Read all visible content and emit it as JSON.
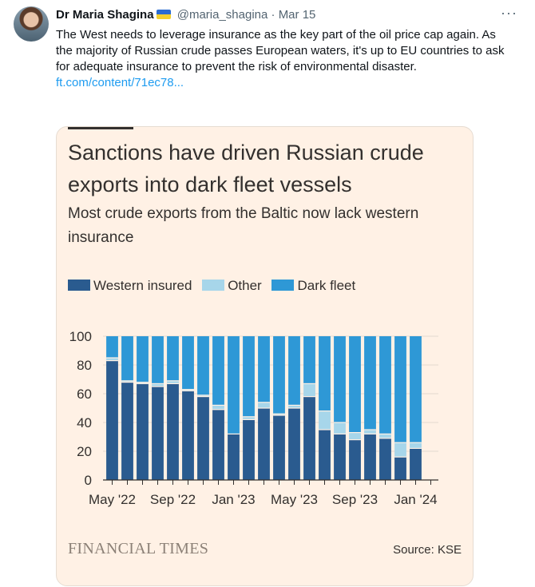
{
  "tweet": {
    "author_name": "Dr Maria Shagina",
    "handle": "@maria_shagina",
    "separator": "·",
    "date": "Mar 15",
    "more_icon": "more-horizontal-icon",
    "text": "The West needs to leverage insurance as the key part of the oil price cap again. As the majority of Russian crude passes European waters, it's up to EU countries to ask for adequate insurance to prevent the risk of environmental disaster.",
    "link_text": "ft.com/content/71ec78..."
  },
  "card": {
    "title": "Sanctions have driven Russian crude exports into dark fleet vessels",
    "subtitle": "Most crude exports from the Baltic now lack western insurance",
    "logo_text": "FINANCIAL TIMES",
    "source": "Source: KSE"
  },
  "chart_data": {
    "type": "bar",
    "stacked": true,
    "categories": [
      "May '22",
      "Jun '22",
      "Jul '22",
      "Aug '22",
      "Sep '22",
      "Oct '22",
      "Nov '22",
      "Dec '22",
      "Jan '23",
      "Feb '23",
      "Mar '23",
      "Apr '23",
      "May '23",
      "Jun '23",
      "Jul '23",
      "Aug '23",
      "Sep '23",
      "Oct '23",
      "Nov '23",
      "Dec '23",
      "Jan '24",
      "Feb '24"
    ],
    "tick_labels": [
      "May '22",
      "Sep '22",
      "Jan '23",
      "May '23",
      "Sep '23",
      "Jan '24"
    ],
    "tick_label_indices": [
      0,
      4,
      8,
      12,
      16,
      20
    ],
    "series": [
      {
        "name": "Western insured",
        "color": "#2a5b8f",
        "values": [
          83,
          68,
          67,
          65,
          67,
          62,
          58,
          49,
          32,
          42,
          50,
          45,
          50,
          58,
          35,
          32,
          28,
          32,
          29,
          16,
          22,
          null
        ]
      },
      {
        "name": "Other",
        "color": "#a7d6ea",
        "values": [
          2,
          1,
          1,
          2,
          2,
          1,
          1,
          3,
          0,
          2,
          4,
          1,
          2,
          9,
          13,
          8,
          5,
          3,
          3,
          10,
          4,
          null
        ]
      },
      {
        "name": "Dark fleet",
        "color": "#2e98d6",
        "values": [
          15,
          31,
          32,
          33,
          31,
          37,
          41,
          48,
          68,
          56,
          46,
          54,
          48,
          33,
          52,
          60,
          67,
          65,
          68,
          74,
          74,
          null
        ]
      }
    ],
    "ylim": [
      0,
      100
    ],
    "yticks": [
      0,
      20,
      40,
      60,
      80,
      100
    ],
    "grid": true,
    "legend_position": "top-left"
  }
}
